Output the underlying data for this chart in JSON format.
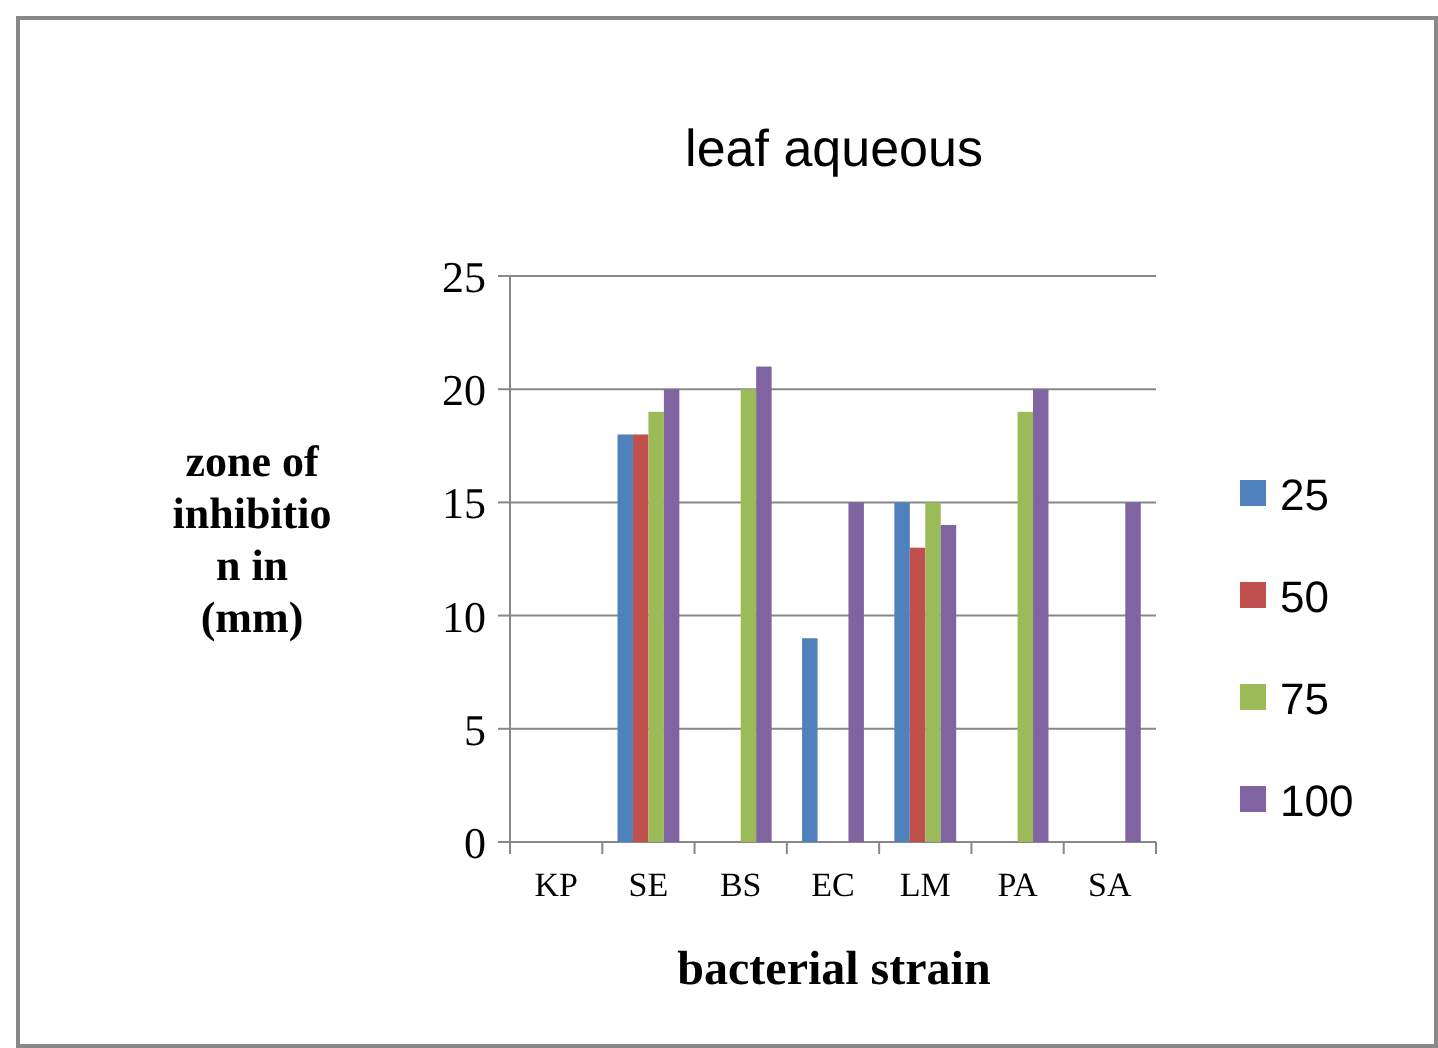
{
  "chart_data": {
    "type": "bar",
    "title": "leaf aqueous",
    "xlabel": "bacterial strain",
    "ylabel": "zone of\ninhibitio\nn in\n(mm)",
    "categories": [
      "KP",
      "SE",
      "BS",
      "EC",
      "LM",
      "PA",
      "SA"
    ],
    "series": [
      {
        "name": "25",
        "color": "#4f81bd",
        "values": [
          0,
          18,
          0,
          9,
          15,
          0,
          0
        ]
      },
      {
        "name": "50",
        "color": "#c0504d",
        "values": [
          0,
          18,
          0,
          0,
          13,
          0,
          0
        ]
      },
      {
        "name": "75",
        "color": "#9bbb59",
        "values": [
          0,
          19,
          20,
          0,
          15,
          19,
          0
        ]
      },
      {
        "name": "100",
        "color": "#8064a2",
        "values": [
          0,
          20,
          21,
          15,
          14,
          20,
          15
        ]
      }
    ],
    "ylim": [
      0,
      25
    ],
    "yticks": [
      0,
      5,
      10,
      15,
      20,
      25
    ],
    "grid": "y",
    "legend": "right"
  }
}
